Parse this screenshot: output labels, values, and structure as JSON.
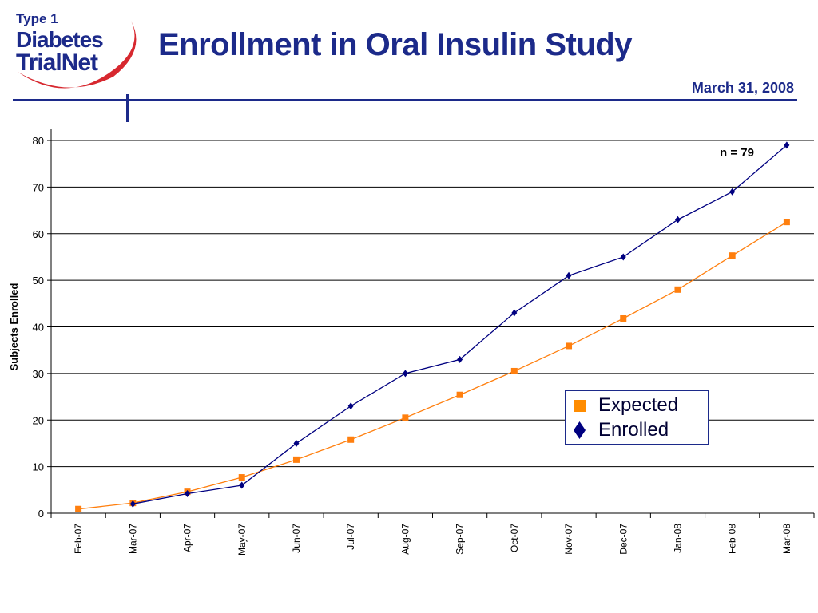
{
  "header": {
    "logo_line1": "Type 1",
    "logo_line2": "Diabetes",
    "logo_line3": "TrialNet",
    "title": "Enrollment in Oral Insulin Study",
    "date": "March 31, 2008"
  },
  "colors": {
    "brand_blue": "#1c2a8a",
    "logo_red": "#d7282f",
    "expected": "#ff7f0e",
    "enrolled": "#000080"
  },
  "chart_data": {
    "type": "line",
    "title": "",
    "xlabel": "",
    "ylabel": "Subjects Enrolled",
    "ylim": [
      0,
      80
    ],
    "yticks": [
      0,
      10,
      20,
      30,
      40,
      50,
      60,
      70,
      80
    ],
    "grid": true,
    "legend_position": "lower-right",
    "categories": [
      "Feb-07",
      "Mar-07",
      "Apr-07",
      "May-07",
      "Jun-07",
      "Jul-07",
      "Aug-07",
      "Sep-07",
      "Oct-07",
      "Nov-07",
      "Dec-07",
      "Jan-08",
      "Feb-08",
      "Mar-08"
    ],
    "series": [
      {
        "name": "Expected",
        "marker": "square",
        "color": "#ff7f0e",
        "values": [
          0.9,
          2.2,
          4.6,
          7.7,
          11.5,
          15.8,
          20.5,
          25.4,
          30.5,
          35.9,
          41.8,
          48.0,
          55.3,
          62.5
        ]
      },
      {
        "name": "Enrolled",
        "marker": "diamond",
        "color": "#000080",
        "values": [
          null,
          2,
          4.2,
          6,
          15,
          23,
          30,
          33,
          43,
          51,
          55,
          63,
          69,
          79
        ]
      }
    ],
    "annotation": "n = 79"
  }
}
